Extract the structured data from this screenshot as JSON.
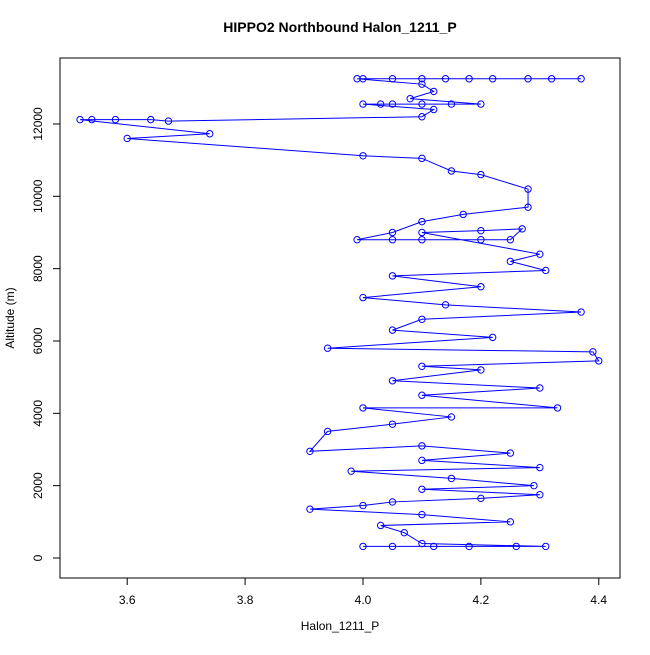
{
  "chart_data": {
    "type": "line",
    "title": "HIPPO2 Northbound Halon_1211_P",
    "x_label": "Halon_1211_P",
    "y_label": "Altitude (m)",
    "color": "#0000ff",
    "x": [
      4.37,
      4.32,
      4.28,
      4.22,
      4.18,
      4.14,
      4.1,
      4.05,
      4.0,
      3.99,
      4.1,
      4.12,
      4.08,
      4.2,
      4.15,
      4.1,
      4.05,
      4.03,
      4.0,
      4.12,
      4.1,
      3.67,
      3.64,
      3.58,
      3.54,
      3.52,
      3.74,
      3.6,
      4.0,
      4.1,
      4.15,
      4.2,
      4.28,
      4.28,
      4.17,
      4.1,
      4.05,
      3.99,
      4.05,
      4.1,
      4.2,
      4.25,
      4.27,
      4.2,
      4.1,
      4.3,
      4.25,
      4.31,
      4.05,
      4.2,
      4.0,
      4.14,
      4.37,
      4.1,
      4.05,
      4.22,
      3.94,
      4.39,
      4.4,
      4.1,
      4.2,
      4.05,
      4.3,
      4.1,
      4.33,
      4.0,
      4.15,
      4.05,
      3.94,
      3.91,
      4.1,
      4.25,
      4.1,
      4.3,
      3.98,
      4.15,
      4.29,
      4.1,
      4.3,
      4.2,
      4.05,
      4.0,
      3.91,
      4.1,
      4.25,
      4.03,
      4.07,
      4.1,
      4.31,
      4.26,
      4.18,
      4.12,
      4.05,
      4.0
    ],
    "values": [
      13250,
      13250,
      13250,
      13250,
      13250,
      13250,
      13250,
      13250,
      13250,
      13250,
      13100,
      12900,
      12700,
      12550,
      12550,
      12550,
      12550,
      12550,
      12550,
      12400,
      12200,
      12080,
      12120,
      12120,
      12120,
      12120,
      11730,
      11600,
      11120,
      11050,
      10700,
      10600,
      10200,
      9700,
      9500,
      9300,
      9000,
      8800,
      8800,
      8800,
      8800,
      8800,
      9100,
      9050,
      9000,
      8400,
      8200,
      7950,
      7800,
      7500,
      7200,
      7000,
      6800,
      6600,
      6300,
      6100,
      5800,
      5700,
      5450,
      5300,
      5200,
      4900,
      4700,
      4500,
      4150,
      4150,
      3900,
      3700,
      3500,
      2950,
      3100,
      2900,
      2700,
      2500,
      2400,
      2200,
      2000,
      1900,
      1750,
      1650,
      1550,
      1450,
      1350,
      1200,
      1000,
      900,
      700,
      400,
      320,
      320,
      320,
      320,
      320,
      320
    ],
    "xlim": [
      3.486,
      4.436
    ],
    "ylim": [
      -553,
      13824
    ],
    "xticks": [
      3.6,
      3.8,
      {
        "value": 4.0,
        "label": "4.0"
      },
      4.2,
      4.4
    ],
    "yticks": [
      0,
      2000,
      4000,
      6000,
      8000,
      10000,
      12000
    ]
  }
}
